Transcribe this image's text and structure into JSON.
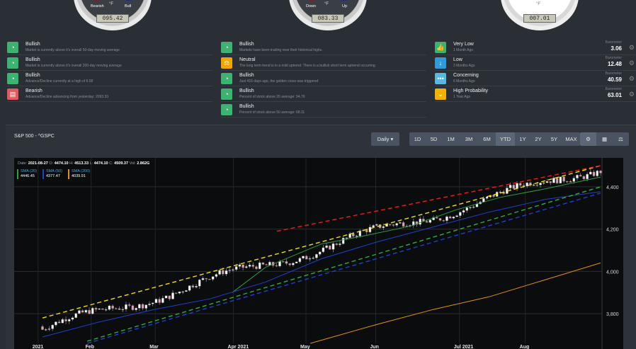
{
  "gauges": [
    {
      "value": "095.42",
      "unit": "°F",
      "left_label": "Bearish",
      "right_label": "Bull"
    },
    {
      "value": "083.33",
      "unit": "°F",
      "left_label": "Down",
      "right_label": "Up"
    },
    {
      "value": "007.01",
      "unit": "°F"
    }
  ],
  "col1": [
    {
      "title": "Bullish",
      "sub": "Market is currently above it's overall 50-day moving average",
      "color": "#3cb371",
      "icon": "gauge-icon"
    },
    {
      "title": "Bullish",
      "sub": "Market is currently above it's overall 200-day moving average",
      "color": "#3cb371",
      "icon": "gauge-icon"
    },
    {
      "title": "Bullish",
      "sub": "Advance/Decline currently at a high of 6.58",
      "color": "#3cb371",
      "icon": "gauge-icon"
    },
    {
      "title": "Bearish",
      "sub": "Advance/Decline advancing from yesterday: 2093.33",
      "color": "#e05a5f",
      "icon": "chat-icon"
    }
  ],
  "col2": [
    {
      "title": "Bullish",
      "sub": "Markets have been trading near their historical highs.",
      "color": "#3cb371",
      "icon": "gauge-icon"
    },
    {
      "title": "Neutral",
      "sub": "The long term trend is in a mild uptrend. There is a bullish short term uptrend occurring.",
      "color": "#f0a500",
      "icon": "balance-icon"
    },
    {
      "title": "Bullish",
      "sub": "Just 416 days ago, the golden cross was triggered",
      "color": "#3cb371",
      "icon": "gauge-icon"
    },
    {
      "title": "Bullish",
      "sub": "Percent of stock above 20 average: 94.76",
      "color": "#3cb371",
      "icon": "gauge-icon"
    },
    {
      "title": "Bullish",
      "sub": "Percent of stock above 50 average: 68.11",
      "color": "#3cb371",
      "icon": "gauge-icon"
    }
  ],
  "col3": [
    {
      "title": "Very Low",
      "sub": "1 Month Ago",
      "baro_label": "Barometer",
      "baro_value": "3.06",
      "color": "#3cb371",
      "icon": "thumb-icon"
    },
    {
      "title": "Low",
      "sub": "3 Months Ago",
      "baro_label": "Barometer",
      "baro_value": "12.48",
      "color": "#2f9bd8",
      "icon": "arrow-down-icon"
    },
    {
      "title": "Concerning",
      "sub": "6 Months Ago",
      "baro_label": "Barometer",
      "baro_value": "40.59",
      "color": "#5bb6e0",
      "icon": "dots-icon"
    },
    {
      "title": "High Probability",
      "sub": "1 Year Ago",
      "baro_label": "Barometer",
      "baro_value": "63.01",
      "color": "#f0b400",
      "icon": "chevron-down-icon"
    }
  ],
  "panel": {
    "title": "S&P 500 - ^GSPC",
    "interval": "Daily ▾",
    "ranges": [
      "1D",
      "5D",
      "1M",
      "3M",
      "6M",
      "YTD",
      "1Y",
      "2Y",
      "5Y",
      "MAX"
    ],
    "active_range": "YTD"
  },
  "info": {
    "date_label": "Date:",
    "date": "2021-08-27",
    "o_label": "O:",
    "o": "4474.10",
    "h_label": "H:",
    "h": "4513.33",
    "l_label": "L:",
    "l": "4474.10",
    "c_label": "C:",
    "c": "4509.37",
    "vol_label": "Vol:",
    "vol": "2.862G"
  },
  "legend": [
    {
      "name": "SMA (20)",
      "value": "4446.45",
      "color": "#2ea043"
    },
    {
      "name": "SMA (50)",
      "value": "4377.47",
      "color": "#2040d0"
    },
    {
      "name": "SMA (200)",
      "value": "4039.91",
      "color": "#e69500"
    }
  ],
  "chart_data": {
    "type": "line",
    "x_ticks": [
      "2021",
      "Feb",
      "Mar",
      "Apr 2021",
      "May",
      "Jun",
      "Jul 2021",
      "Aug"
    ],
    "y_ticks": [
      3800,
      4000,
      4200,
      4400
    ],
    "ylim": [
      3660,
      4510
    ],
    "grid": true,
    "series": [
      {
        "name": "SMA (20)",
        "color": "#2ea043",
        "x": [
          0.34,
          0.4,
          0.5,
          0.58,
          0.66,
          0.74,
          0.82,
          0.9,
          1.0
        ],
        "y": [
          3900,
          4020,
          4130,
          4170,
          4215,
          4290,
          4350,
          4390,
          4446
        ]
      },
      {
        "name": "SMA (50)",
        "color": "#2040d0",
        "x": [
          0,
          0.1,
          0.2,
          0.3,
          0.4,
          0.5,
          0.6,
          0.7,
          0.8,
          0.9,
          1.0
        ],
        "y": [
          3690,
          3760,
          3820,
          3870,
          3950,
          4060,
          4140,
          4210,
          4280,
          4340,
          4377
        ]
      },
      {
        "name": "SMA (200)",
        "color": "#e69500",
        "x": [
          0.48,
          0.6,
          0.7,
          0.8,
          0.9,
          1.0
        ],
        "y": [
          3660,
          3750,
          3820,
          3880,
          3960,
          4040
        ]
      }
    ],
    "trendlines": [
      {
        "color": "#f0e000",
        "x": [
          0,
          1.0
        ],
        "y": [
          3780,
          4500
        ]
      },
      {
        "color": "#2eae3c",
        "x": [
          0.08,
          1.0
        ],
        "y": [
          3670,
          4400
        ]
      },
      {
        "color": "#2040d0",
        "x": [
          0.08,
          1.0
        ],
        "y": [
          3660,
          4370
        ]
      },
      {
        "color": "#e02020",
        "x": [
          0.42,
          1.0
        ],
        "y": [
          4190,
          4500
        ]
      }
    ],
    "price": {
      "start": 3740,
      "end": 4510
    }
  }
}
